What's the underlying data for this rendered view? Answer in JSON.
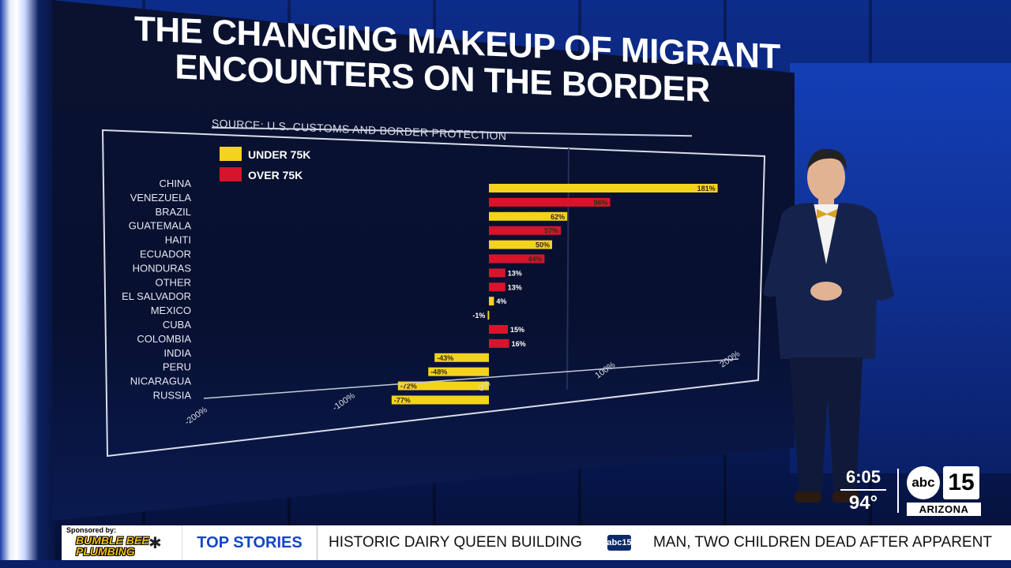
{
  "headline": {
    "line1": "THE CHANGING MAKEUP OF MIGRANT",
    "line2": "ENCOUNTERS ON THE BORDER"
  },
  "source": "SOURCE: U.S. CUSTOMS AND BORDER PROTECTION",
  "chart_data": {
    "type": "bar",
    "orientation": "horizontal",
    "title": "THE CHANGING MAKEUP OF MIGRANT ENCOUNTERS ON THE BORDER",
    "categories": [
      "CHINA",
      "VENEZUELA",
      "BRAZIL",
      "GUATEMALA",
      "HAITI",
      "ECUADOR",
      "HONDURAS",
      "OTHER",
      "EL SALVADOR",
      "MEXICO",
      "CUBA",
      "COLOMBIA",
      "INDIA",
      "PERU",
      "NICARAGUA",
      "RUSSIA"
    ],
    "values": [
      181,
      96,
      62,
      57,
      50,
      44,
      13,
      13,
      4,
      -1,
      15,
      16,
      -43,
      -48,
      -72,
      -77
    ],
    "value_labels": [
      "181%",
      "96%",
      "62%",
      "57%",
      "50%",
      "44%",
      "13%",
      "13%",
      "4%",
      "-1%",
      "15%",
      "16%",
      "-43%",
      "-48%",
      "-72%",
      "-77%"
    ],
    "groups": [
      "under",
      "over",
      "under",
      "over",
      "under",
      "over",
      "over",
      "over",
      "under",
      "under",
      "over",
      "over",
      "under",
      "under",
      "under",
      "under"
    ],
    "legend": [
      {
        "key": "under",
        "label": "UNDER 75K",
        "color": "#f3d31e"
      },
      {
        "key": "over",
        "label": "OVER 75K",
        "color": "#d8142c"
      }
    ],
    "x_ticks": [
      "-200%",
      "-100%",
      "0%",
      "100%",
      "200%"
    ],
    "xlim": [
      -200,
      200
    ],
    "legend_position": "top-left",
    "grid": false
  },
  "clock": {
    "time": "6:05",
    "temp": "94°"
  },
  "station": {
    "abc": "abc",
    "number": "15",
    "market": "ARIZONA"
  },
  "ticker": {
    "sponsored_by": "Sponsored by:",
    "sponsor_name_1": "BUMBLE BEE",
    "sponsor_name_2": "PLUMBING",
    "section": "TOP STORIES",
    "story1": "HISTORIC DAIRY QUEEN BUILDING",
    "logo_text": "abc15",
    "story2": "MAN, TWO CHILDREN DEAD AFTER APPARENT"
  },
  "colors": {
    "under": "#f3d31e",
    "over": "#d8142c",
    "ticker_accent": "#1446c8"
  },
  "icons": [
    "bee-icon",
    "abc15-logo-icon"
  ]
}
